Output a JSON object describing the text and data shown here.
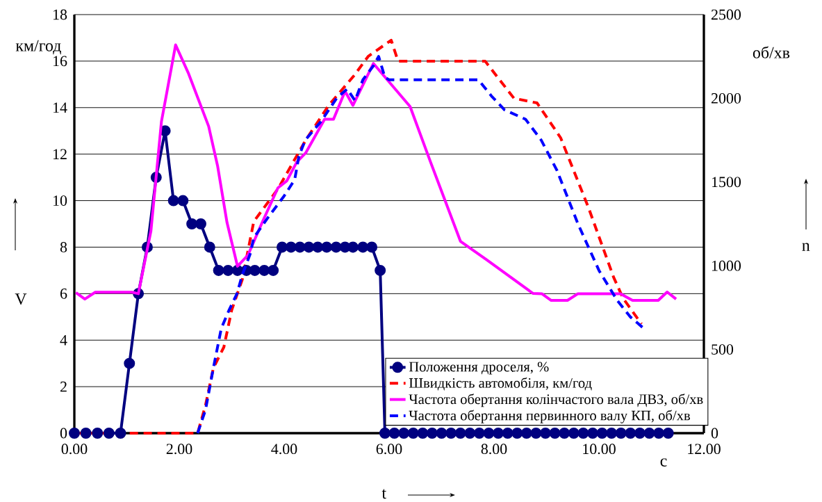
{
  "chart_data": {
    "type": "line",
    "xlabel": "t",
    "ylabel": "V",
    "y2label": "n",
    "annotations": [
      "км/год",
      "об/хв",
      "с"
    ],
    "xlim": [
      0,
      12
    ],
    "xticks": [
      {
        "value": 0,
        "label": "0.00"
      },
      {
        "value": 2,
        "label": "2.00"
      },
      {
        "value": 4,
        "label": "4.00"
      },
      {
        "value": 6,
        "label": "6.00"
      },
      {
        "value": 8,
        "label": "8.00"
      },
      {
        "value": 10,
        "label": "10.00"
      },
      {
        "value": 12,
        "label": "12.00"
      }
    ],
    "ylim": [
      0,
      18
    ],
    "yticks": [
      0,
      2,
      4,
      6,
      8,
      10,
      12,
      14,
      16,
      18
    ],
    "y2lim": [
      0,
      2500
    ],
    "y2ticks": [
      0,
      500,
      1000,
      1500,
      2000,
      2500
    ],
    "grid": "y",
    "legend": "bottom right",
    "series": [
      {
        "name": "Положення дроселя, %",
        "color": "#000080",
        "marker": "circle",
        "line_style": "solid",
        "x": [
          0,
          0.22,
          0.44,
          0.66,
          0.88,
          1.05,
          1.22,
          1.39,
          1.56,
          1.73,
          1.89,
          2.07,
          2.24,
          2.41,
          2.58,
          2.75,
          2.93,
          3.11,
          3.28,
          3.44,
          3.62,
          3.79,
          3.96,
          4.13,
          4.3,
          4.47,
          4.64,
          4.81,
          4.99,
          5.16,
          5.31,
          5.5,
          5.67,
          5.83,
          5.92,
          6.1,
          6.28,
          6.46,
          6.64,
          6.82,
          7.0,
          7.18,
          7.36,
          7.54,
          7.72,
          7.9,
          8.08,
          8.26,
          8.44,
          8.62,
          8.8,
          8.98,
          9.16,
          9.34,
          9.52,
          9.7,
          9.88,
          10.06,
          10.24,
          10.42,
          10.6,
          10.78,
          10.96,
          11.14,
          11.32
        ],
        "values": [
          0,
          0,
          0,
          0,
          0,
          3,
          6,
          8,
          11,
          13,
          10,
          10,
          9,
          9,
          8,
          7,
          7,
          7,
          7,
          7,
          7,
          7,
          8,
          8,
          8,
          8,
          8,
          8,
          8,
          8,
          8,
          8,
          8,
          7,
          0,
          0,
          0,
          0,
          0,
          0,
          0,
          0,
          0,
          0,
          0,
          0,
          0,
          0,
          0,
          0,
          0,
          0,
          0,
          0,
          0,
          0,
          0,
          0,
          0,
          0,
          0,
          0,
          0,
          0,
          0
        ]
      },
      {
        "name": "Швидкість автомобіля, км/год",
        "color": "#ff0000",
        "line_style": "dashed",
        "x": [
          0,
          2.35,
          2.5,
          2.65,
          2.85,
          3.0,
          3.2,
          3.42,
          3.88,
          4.41,
          4.85,
          5.34,
          5.6,
          6.04,
          6.17,
          7.75,
          7.83,
          8.38,
          8.82,
          9.27,
          9.8,
          10.28,
          10.46,
          10.81
        ],
        "values": [
          0,
          0,
          1.2,
          2.8,
          3.7,
          5.3,
          6.6,
          9.1,
          10.5,
          12.6,
          14.1,
          15.4,
          16.2,
          16.9,
          16.0,
          16.0,
          16.0,
          14.4,
          14.2,
          12.7,
          9.7,
          6.7,
          5.8,
          4.7
        ]
      },
      {
        "name": "Частота обертання колінчастого вала ДВЗ, об/хв",
        "color": "#ff00ff",
        "line_style": "solid",
        "axis": "y2",
        "x": [
          0.03,
          0.2,
          0.4,
          1.1,
          1.22,
          1.46,
          1.66,
          1.93,
          2.17,
          2.56,
          2.73,
          2.91,
          3.11,
          3.31,
          3.58,
          3.88,
          4.05,
          4.24,
          4.41,
          4.77,
          4.94,
          5.16,
          5.31,
          5.7,
          6.4,
          6.79,
          7.36,
          7.85,
          8.74,
          8.91,
          9.09,
          9.4,
          9.6,
          10.41,
          10.64,
          11.13,
          11.3,
          11.47
        ],
        "values": [
          839,
          801,
          842,
          842,
          833,
          1208,
          1861,
          2319,
          2153,
          1833,
          1597,
          1258,
          997,
          1064,
          1258,
          1465,
          1507,
          1619,
          1674,
          1875,
          1875,
          2042,
          1958,
          2208,
          1951,
          1619,
          1146,
          1038,
          835,
          833,
          793,
          793,
          833,
          833,
          793,
          793,
          843,
          801
        ]
      },
      {
        "name": "Частота обертання первинного валу КП, об/хв",
        "color": "#0000ff",
        "line_style": "dashed",
        "axis": "y2",
        "x": [
          2.35,
          2.5,
          2.65,
          2.8,
          2.95,
          3.1,
          3.2,
          3.35,
          3.42,
          3.7,
          4.0,
          4.2,
          4.28,
          4.4,
          4.7,
          5.0,
          5.2,
          5.35,
          5.5,
          5.7,
          5.8,
          5.92,
          6.0,
          7.7,
          7.95,
          8.2,
          8.6,
          8.9,
          9.2,
          9.6,
          10.0,
          10.35,
          10.6,
          10.86
        ],
        "values": [
          0,
          139,
          389,
          625,
          736,
          833,
          944,
          1069,
          1167,
          1292,
          1417,
          1514,
          1653,
          1750,
          1861,
          2000,
          2056,
          1986,
          2111,
          2194,
          2250,
          2125,
          2111,
          2111,
          2014,
          1931,
          1875,
          1750,
          1569,
          1250,
          972,
          792,
          694,
          624
        ]
      }
    ]
  }
}
